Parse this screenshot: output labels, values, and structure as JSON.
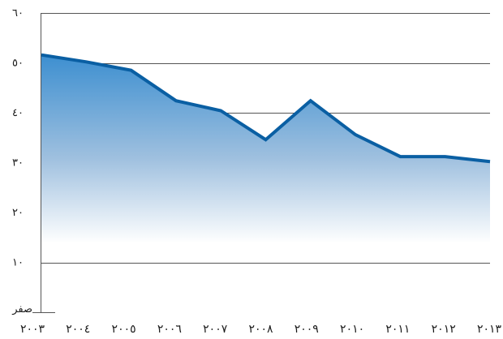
{
  "colors": {
    "line": "#0a5fa3",
    "area_top": "#3d8fd0",
    "area_bottom": "#ffffff",
    "grid": "#555555"
  },
  "chart_data": {
    "type": "area",
    "title": "",
    "xlabel": "",
    "ylabel": "",
    "categories": [
      "٢٠٠٣",
      "٢٠٠٤",
      "٢٠٠٥",
      "٢٠٠٦",
      "٢٠٠٧",
      "٢٠٠٨",
      "٢٠٠٩",
      "٢٠١٠",
      "٢٠١١",
      "٢٠١٢",
      "٢٠١٣"
    ],
    "x": [
      2003,
      2004,
      2005,
      2006,
      2007,
      2008,
      2009,
      2010,
      2011,
      2012,
      2013
    ],
    "values": [
      51.6,
      50.2,
      48.5,
      42.4,
      40.4,
      34.6,
      42.4,
      35.6,
      31.2,
      31.2,
      30.2
    ],
    "ylim": [
      0,
      60
    ],
    "yticks": [
      0,
      10,
      20,
      30,
      40,
      50,
      60
    ],
    "ytick_labels": [
      "صفر",
      "١٠",
      "٢٠",
      "٣٠",
      "٤٠",
      "٥٠",
      "٦٠"
    ],
    "grid": true
  }
}
